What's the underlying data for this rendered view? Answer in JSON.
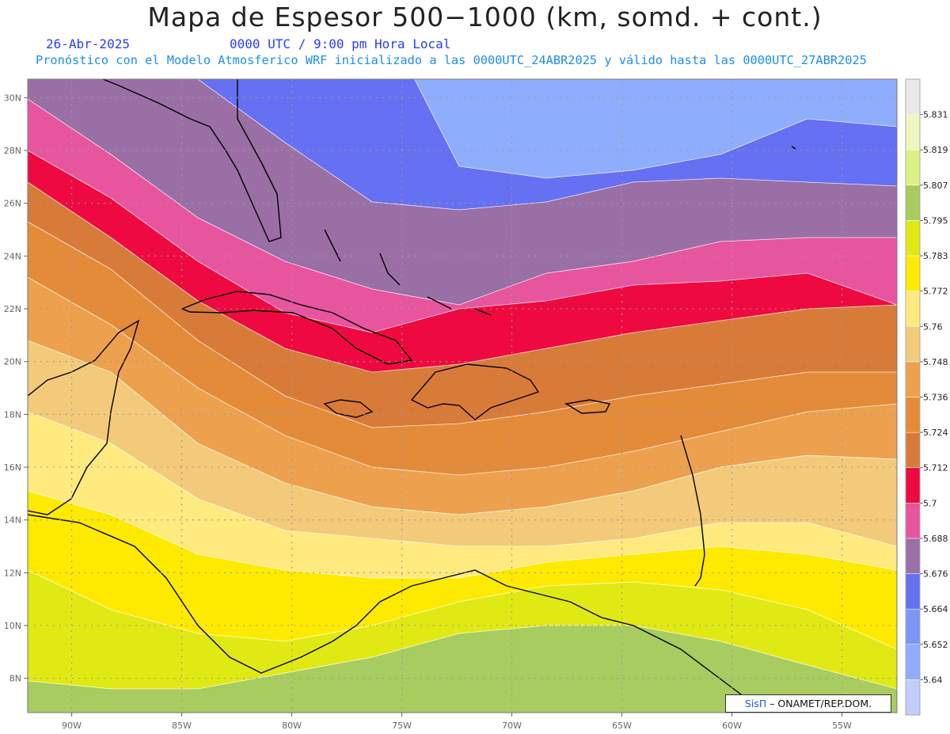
{
  "header": {
    "title": "Mapa de Espesor 500−1000 (km, somd. + cont.)",
    "date": "26-Abr-2025",
    "time": "0000 UTC / 9:00 pm Hora Local",
    "description": "Pronóstico con el Modelo Atmosferico WRF inicializado a las 0000UTC_24ABR2025 y válido hasta las  0000UTC_27ABR2025"
  },
  "chart_data": {
    "type": "heatmap",
    "variable": "Espesor 500-1000",
    "units": "km",
    "lon_range": [
      -92,
      -52.5
    ],
    "lat_range": [
      6.7,
      30.7
    ],
    "x_ticks": [
      "90W",
      "85W",
      "80W",
      "75W",
      "70W",
      "65W",
      "60W",
      "55W"
    ],
    "y_ticks": [
      "8N",
      "10N",
      "12N",
      "14N",
      "16N",
      "18N",
      "20N",
      "22N",
      "24N",
      "26N",
      "28N",
      "30N"
    ],
    "grid": true,
    "legend_position": "right",
    "legend_levels": [
      "5.64",
      "5.652",
      "5.664",
      "5.676",
      "5.688",
      "5.7",
      "5.712",
      "5.724",
      "5.736",
      "5.748",
      "5.76",
      "5.772",
      "5.783",
      "5.795",
      "5.807",
      "5.819",
      "5.831"
    ],
    "legend_colors": [
      "#c3cdfb",
      "#8fadfd",
      "#7b96f7",
      "#6670f2",
      "#9a6fa6",
      "#e8559f",
      "#ee0a40",
      "#d97b38",
      "#e48b39",
      "#eda14e",
      "#f3ca7a",
      "#feea7e",
      "#feea00",
      "#e1e914",
      "#a8cc60",
      "#dcf185",
      "#eff6c0",
      "#e8e8e8"
    ]
  },
  "credit": {
    "brand": "SisΠ",
    "text": " – ONAMET/REP.DOM."
  }
}
